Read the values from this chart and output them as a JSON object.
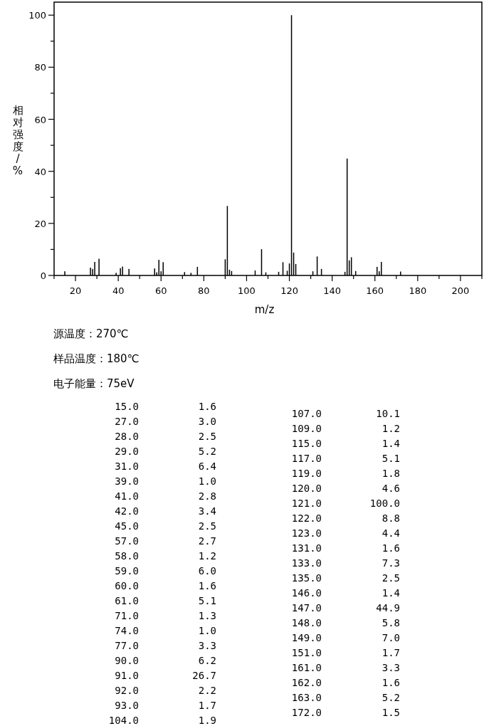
{
  "chart_data": {
    "type": "bar",
    "xlabel": "m/z",
    "ylabel": "相对强度/%",
    "x": [
      15,
      27,
      28,
      29,
      31,
      39,
      41,
      42,
      45,
      57,
      58,
      59,
      60,
      61,
      71,
      74,
      77,
      90,
      91,
      92,
      93,
      104,
      107,
      109,
      115,
      117,
      119,
      120,
      121,
      122,
      123,
      131,
      133,
      135,
      146,
      147,
      148,
      149,
      151,
      161,
      162,
      163,
      172
    ],
    "values": [
      1.6,
      3.0,
      2.5,
      5.2,
      6.4,
      1.0,
      2.8,
      3.4,
      2.5,
      2.7,
      1.2,
      6.0,
      1.6,
      5.1,
      1.3,
      1.0,
      3.3,
      6.2,
      26.7,
      2.2,
      1.7,
      1.9,
      10.1,
      1.2,
      1.4,
      5.1,
      1.8,
      4.6,
      100.0,
      8.8,
      4.4,
      1.6,
      7.3,
      2.5,
      1.4,
      44.9,
      5.8,
      7.0,
      1.7,
      3.3,
      1.6,
      5.2,
      1.5
    ],
    "color": "#000000",
    "xlim": [
      10,
      210
    ],
    "ylim": [
      0,
      105
    ],
    "xticks": [
      20,
      40,
      60,
      80,
      100,
      120,
      140,
      160,
      180,
      200,
      {
        "value": 10,
        "label": null
      },
      {
        "value": 30,
        "label": null
      },
      {
        "value": 50,
        "label": null
      },
      {
        "value": 70,
        "label": null
      },
      {
        "value": 90,
        "label": null
      },
      {
        "value": 110,
        "label": null
      },
      {
        "value": 130,
        "label": null
      },
      {
        "value": 150,
        "label": null
      },
      {
        "value": 170,
        "label": null
      },
      {
        "value": 190,
        "label": null
      },
      {
        "value": 210,
        "label": null
      }
    ],
    "yticks": [
      0,
      20,
      40,
      60,
      80,
      100,
      {
        "value": 10,
        "label": null
      },
      {
        "value": 30,
        "label": null
      },
      {
        "value": 50,
        "label": null
      },
      {
        "value": 70,
        "label": null
      },
      {
        "value": 90,
        "label": null
      }
    ],
    "annotations": [
      "源温度：270℃",
      "样品温度：180℃",
      "电子能量：75eV",
      "15.0",
      "1.6",
      "27.0",
      "3.0",
      "28.0",
      "2.5",
      "29.0",
      "5.2",
      "31.0",
      "6.4",
      "39.0",
      "1.0",
      "41.0",
      "2.8",
      "42.0",
      "3.4",
      "45.0",
      "2.5",
      "57.0",
      "2.7",
      "58.0",
      "1.2",
      "59.0",
      "6.0",
      "60.0",
      "1.6",
      "61.0",
      "5.1",
      "71.0",
      "1.3",
      "74.0",
      "1.0",
      "77.0",
      "3.3",
      "90.0",
      "6.2",
      "91.0",
      "26.7",
      "92.0",
      "2.2",
      "93.0",
      "1.7",
      "104.0",
      "1.9",
      "107.0",
      "10.1",
      "109.0",
      "1.2",
      "115.0",
      "1.4",
      "117.0",
      "5.1",
      "119.0",
      "1.8",
      "120.0",
      "4.6",
      "121.0",
      "100.0",
      "122.0",
      "8.8",
      "123.0",
      "4.4",
      "131.0",
      "1.6",
      "133.0",
      "7.3",
      "135.0",
      "2.5",
      "146.0",
      "1.4",
      "147.0",
      "44.9",
      "148.0",
      "5.8",
      "149.0",
      "7.0",
      "151.0",
      "1.7",
      "161.0",
      "3.3",
      "162.0",
      "1.6",
      "163.0",
      "5.2",
      "172.0",
      "1.5"
    ]
  }
}
